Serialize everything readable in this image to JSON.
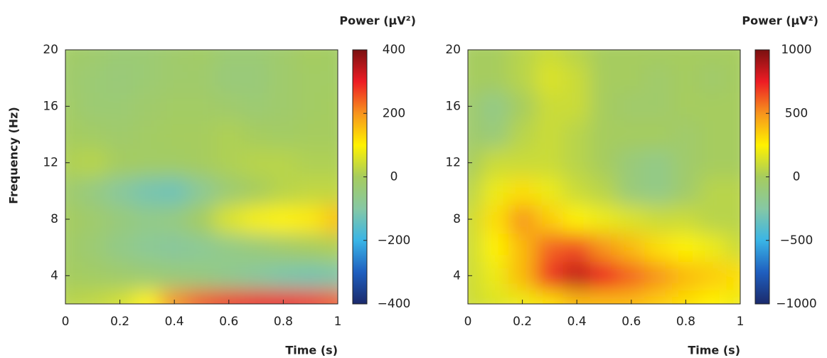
{
  "chart_data": [
    {
      "type": "heatmap",
      "xlabel": "Time (s)",
      "ylabel": "Frequency (Hz)",
      "colorbar_label": "Power (μV²)",
      "x": [
        0,
        0.1,
        0.2,
        0.3,
        0.4,
        0.5,
        0.6,
        0.7,
        0.8,
        0.9,
        1
      ],
      "y": [
        2,
        4,
        6,
        8,
        10,
        12,
        14,
        16,
        18,
        20
      ],
      "z": [
        [
          20,
          30,
          50,
          100,
          200,
          250,
          280,
          300,
          300,
          280,
          250
        ],
        [
          0,
          -10,
          -20,
          -30,
          -40,
          -50,
          -70,
          -90,
          -110,
          -120,
          -110
        ],
        [
          -10,
          -30,
          -60,
          -80,
          -90,
          -80,
          -60,
          -40,
          -20,
          0,
          10
        ],
        [
          0,
          -20,
          -40,
          -60,
          -50,
          0,
          60,
          90,
          100,
          110,
          150
        ],
        [
          -20,
          -50,
          -90,
          -120,
          -130,
          -80,
          -30,
          0,
          20,
          30,
          30
        ],
        [
          10,
          20,
          0,
          -10,
          -10,
          0,
          10,
          20,
          20,
          10,
          10
        ],
        [
          0,
          -10,
          -20,
          -10,
          0,
          0,
          10,
          0,
          -10,
          0,
          0
        ],
        [
          -10,
          -30,
          -30,
          -20,
          -10,
          -10,
          -20,
          -30,
          -20,
          -10,
          0
        ],
        [
          -20,
          -30,
          -40,
          -30,
          -20,
          -20,
          -40,
          -40,
          -20,
          -10,
          -10
        ],
        [
          -10,
          -20,
          -30,
          -30,
          -20,
          -10,
          -30,
          -30,
          -20,
          0,
          -10
        ]
      ],
      "xlim": [
        0,
        1
      ],
      "ylim": [
        2,
        20
      ],
      "clim": [
        -400,
        400
      ],
      "xticks": [
        0,
        0.2,
        0.4,
        0.6,
        0.8,
        1
      ],
      "yticks": [
        4,
        8,
        12,
        16,
        20
      ],
      "cticks": [
        {
          "value": -400,
          "label": "−400"
        },
        {
          "value": -200,
          "label": "−200"
        },
        0,
        200,
        400
      ],
      "colormap": [
        "#1b2a6b",
        "#1f5fbf",
        "#3ab5e6",
        "#86c8a4",
        "#a6cc5e",
        "#fff200",
        "#f7941d",
        "#ed1c24",
        "#7a1010"
      ]
    },
    {
      "type": "heatmap",
      "xlabel": "Time (s)",
      "colorbar_label": "Power (μV²)",
      "x": [
        0,
        0.1,
        0.2,
        0.3,
        0.4,
        0.5,
        0.6,
        0.7,
        0.8,
        0.9,
        1
      ],
      "y": [
        2,
        4,
        6,
        8,
        10,
        12,
        14,
        16,
        18,
        20
      ],
      "z": [
        [
          100,
          150,
          200,
          300,
          400,
          400,
          400,
          350,
          300,
          250,
          200
        ],
        [
          100,
          200,
          400,
          700,
          850,
          750,
          600,
          500,
          400,
          350,
          300
        ],
        [
          100,
          250,
          400,
          600,
          650,
          500,
          400,
          300,
          250,
          200,
          100
        ],
        [
          100,
          300,
          500,
          350,
          250,
          200,
          150,
          100,
          100,
          50,
          50
        ],
        [
          50,
          200,
          300,
          200,
          100,
          50,
          -100,
          -150,
          -50,
          50,
          50
        ],
        [
          0,
          100,
          100,
          100,
          50,
          0,
          -100,
          -150,
          -50,
          0,
          0
        ],
        [
          -50,
          -100,
          50,
          100,
          50,
          0,
          0,
          0,
          -50,
          0,
          0
        ],
        [
          -50,
          -150,
          0,
          100,
          100,
          0,
          -50,
          -50,
          0,
          0,
          0
        ],
        [
          0,
          0,
          50,
          150,
          100,
          0,
          0,
          -50,
          0,
          -50,
          0
        ],
        [
          0,
          0,
          50,
          100,
          50,
          0,
          0,
          0,
          0,
          0,
          0
        ]
      ],
      "xlim": [
        0,
        1
      ],
      "ylim": [
        2,
        20
      ],
      "clim": [
        -1000,
        1000
      ],
      "xticks": [
        0,
        0.2,
        0.4,
        0.6,
        0.8,
        1
      ],
      "yticks": [
        4,
        8,
        12,
        16,
        20
      ],
      "cticks": [
        {
          "value": -1000,
          "label": "−1000"
        },
        {
          "value": -500,
          "label": "−500"
        },
        0,
        500,
        1000
      ],
      "colormap": [
        "#1b2a6b",
        "#1f5fbf",
        "#3ab5e6",
        "#86c8a4",
        "#a6cc5e",
        "#fff200",
        "#f7941d",
        "#ed1c24",
        "#7a1010"
      ]
    }
  ]
}
